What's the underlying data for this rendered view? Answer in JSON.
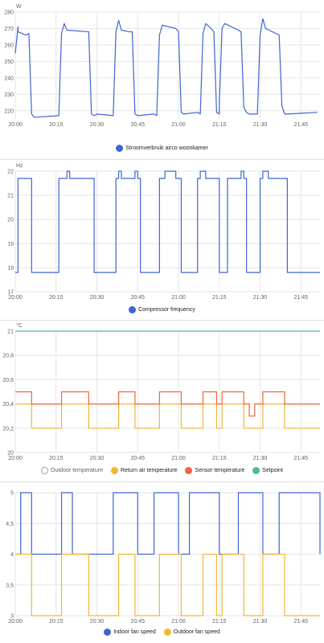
{
  "chart_data": [
    {
      "type": "line",
      "unit": "W",
      "x_ticks": [
        "20:00",
        "20:15",
        "20:30",
        "20:45",
        "21:00",
        "21:15",
        "21:30",
        "21:45"
      ],
      "y_ticks": [
        "220",
        "230",
        "240",
        "250",
        "260",
        "270",
        "280"
      ],
      "ylim": [
        215,
        280
      ],
      "xlim_minutes": [
        0,
        112
      ],
      "grid": true,
      "legend_position": "bottom",
      "series": [
        {
          "name": "Stroomverbruik airco woonkamer",
          "color": "#3f66d1",
          "style": "line",
          "x": [
            "20:00",
            "20:01",
            "20:01",
            "20:04",
            "20:05",
            "20:06",
            "20:07",
            "20:16",
            "20:17",
            "20:18",
            "20:19",
            "20:27",
            "20:28",
            "20:29",
            "20:30",
            "20:36",
            "20:37",
            "20:38",
            "20:39",
            "20:42",
            "20:43",
            "20:44",
            "20:45",
            "20:51",
            "20:52",
            "20:53",
            "20:54",
            "20:59",
            "21:00",
            "21:01",
            "21:02",
            "21:07",
            "21:08",
            "21:09",
            "21:10",
            "21:12",
            "21:13",
            "21:14",
            "21:15",
            "21:15",
            "21:16",
            "21:17",
            "21:22",
            "21:23",
            "21:24",
            "21:25",
            "21:26",
            "21:29",
            "21:30",
            "21:31",
            "21:32",
            "21:37",
            "21:38",
            "21:39",
            "21:40",
            "21:51"
          ],
          "y": [
            255,
            271,
            268,
            266,
            267,
            218,
            216,
            217,
            267,
            273,
            269,
            268,
            218,
            217,
            218,
            217,
            268,
            275,
            269,
            268,
            268,
            218,
            217,
            218,
            217,
            266,
            272,
            270,
            268,
            219,
            218,
            219,
            218,
            267,
            273,
            270,
            268,
            219,
            218,
            225,
            270,
            273,
            269,
            268,
            222,
            219,
            218,
            218,
            266,
            276,
            270,
            266,
            223,
            218,
            218,
            219
          ]
        }
      ]
    },
    {
      "type": "line",
      "unit": "Hz",
      "x_ticks": [
        "20:00",
        "20:15",
        "20:30",
        "20:45",
        "21:00",
        "21:15",
        "21:30",
        "21:45"
      ],
      "y_ticks": [
        "17",
        "18",
        "19",
        "20",
        "21",
        "22"
      ],
      "ylim": [
        17,
        22
      ],
      "xlim_minutes": [
        0,
        112
      ],
      "grid": true,
      "legend_position": "bottom",
      "series": [
        {
          "name": "Compressor frequency",
          "color": "#3f66d1",
          "style": "step",
          "x": [
            "20:00",
            "20:01",
            "20:05",
            "20:06",
            "20:16",
            "20:18",
            "20:19",
            "20:20",
            "20:28",
            "20:29",
            "20:30",
            "20:32",
            "20:37",
            "20:38",
            "20:39",
            "20:42",
            "20:44",
            "20:45",
            "20:46",
            "20:52",
            "20:53",
            "20:55",
            "20:59",
            "21:00",
            "21:01",
            "21:02",
            "21:07",
            "21:08",
            "21:10",
            "21:14",
            "21:15",
            "21:16",
            "21:18",
            "21:23",
            "21:24",
            "21:25",
            "21:30",
            "21:31",
            "21:33",
            "21:40",
            "21:41",
            "21:52"
          ],
          "x_note": "",
          "y": [
            17.8,
            21.7,
            21.7,
            17.8,
            21.7,
            21.7,
            22,
            21.7,
            21.7,
            17.8,
            17.8,
            17.8,
            21.7,
            22,
            21.7,
            21.7,
            22,
            21.7,
            17.8,
            17.8,
            21.7,
            22,
            21.7,
            21.7,
            17.8,
            17.8,
            21.7,
            22,
            21.7,
            21.7,
            17.8,
            17.8,
            21.7,
            22,
            21.7,
            17.8,
            21.7,
            22,
            21.7,
            17.8,
            17.8,
            17.8
          ]
        }
      ]
    },
    {
      "type": "line",
      "unit": "°C",
      "x_ticks": [
        "20:00",
        "20:15",
        "20:30",
        "20:45",
        "21:00",
        "21:15",
        "21:30",
        "21:45"
      ],
      "y_ticks": [
        "20",
        "20,2",
        "20,4",
        "20,6",
        "20,8",
        "21"
      ],
      "ylim": [
        20,
        21
      ],
      "xlim_minutes": [
        0,
        112
      ],
      "grid": true,
      "legend_position": "bottom",
      "series": [
        {
          "name": "Outdoor temperature",
          "color": "#9e9e9e",
          "style": "hidden",
          "x": [],
          "y": []
        },
        {
          "name": "Return air temperature",
          "color": "#f2b736",
          "style": "step",
          "x": [
            "20:00",
            "20:06",
            "20:17",
            "20:27",
            "20:38",
            "20:44",
            "20:53",
            "21:01",
            "21:09",
            "21:14",
            "21:16",
            "21:24",
            "21:31",
            "21:39",
            "21:52"
          ],
          "y": [
            20.4,
            20.2,
            20.4,
            20.2,
            20.4,
            20.2,
            20.4,
            20.2,
            20.4,
            20.2,
            20.4,
            20.2,
            20.4,
            20.2,
            20.2
          ]
        },
        {
          "name": "Sensor temperature",
          "color": "#f0643c",
          "style": "step",
          "x": [
            "20:00",
            "20:06",
            "20:17",
            "20:27",
            "20:38",
            "20:44",
            "20:53",
            "21:01",
            "21:09",
            "21:14",
            "21:16",
            "21:24",
            "21:26",
            "21:28",
            "21:31",
            "21:39",
            "21:52"
          ],
          "y": [
            20.5,
            20.4,
            20.5,
            20.4,
            20.5,
            20.4,
            20.5,
            20.4,
            20.5,
            20.4,
            20.5,
            20.4,
            20.3,
            20.4,
            20.5,
            20.4,
            20.4
          ]
        },
        {
          "name": "Setpoint",
          "color": "#4fb8a0",
          "style": "line",
          "x": [
            "20:00",
            "21:52"
          ],
          "y": [
            21,
            21
          ]
        }
      ]
    },
    {
      "type": "line",
      "unit": "",
      "x_ticks": [
        "20:00",
        "20:15",
        "20:30",
        "20:45",
        "21:00",
        "21:15",
        "21:30",
        "21:45"
      ],
      "y_ticks": [
        "3",
        "3,5",
        "4",
        "4,5",
        "5"
      ],
      "ylim": [
        3,
        5
      ],
      "xlim_minutes": [
        0,
        112
      ],
      "grid": true,
      "legend_position": "bottom",
      "series": [
        {
          "name": "Indoor fan speed",
          "color": "#3f66d1",
          "style": "step",
          "x": [
            "20:00",
            "20:02",
            "20:06",
            "20:17",
            "20:21",
            "20:30",
            "20:36",
            "20:45",
            "20:51",
            "21:00",
            "21:04",
            "21:15",
            "21:22",
            "21:31",
            "21:37",
            "21:52"
          ],
          "y": [
            4,
            5,
            4,
            5,
            4,
            4,
            5,
            4,
            5,
            4,
            5,
            4,
            5,
            4,
            5,
            4
          ]
        },
        {
          "name": "Outdoor fan speed",
          "color": "#f2b736",
          "style": "step",
          "x": [
            "20:00",
            "20:06",
            "20:17",
            "20:27",
            "20:38",
            "20:44",
            "20:53",
            "21:01",
            "21:09",
            "21:14",
            "21:16",
            "21:24",
            "21:31",
            "21:39",
            "21:52"
          ],
          "y": [
            4,
            3,
            4,
            3,
            4,
            3,
            4,
            3,
            4,
            3,
            4,
            3,
            4,
            3,
            3
          ]
        }
      ]
    }
  ]
}
